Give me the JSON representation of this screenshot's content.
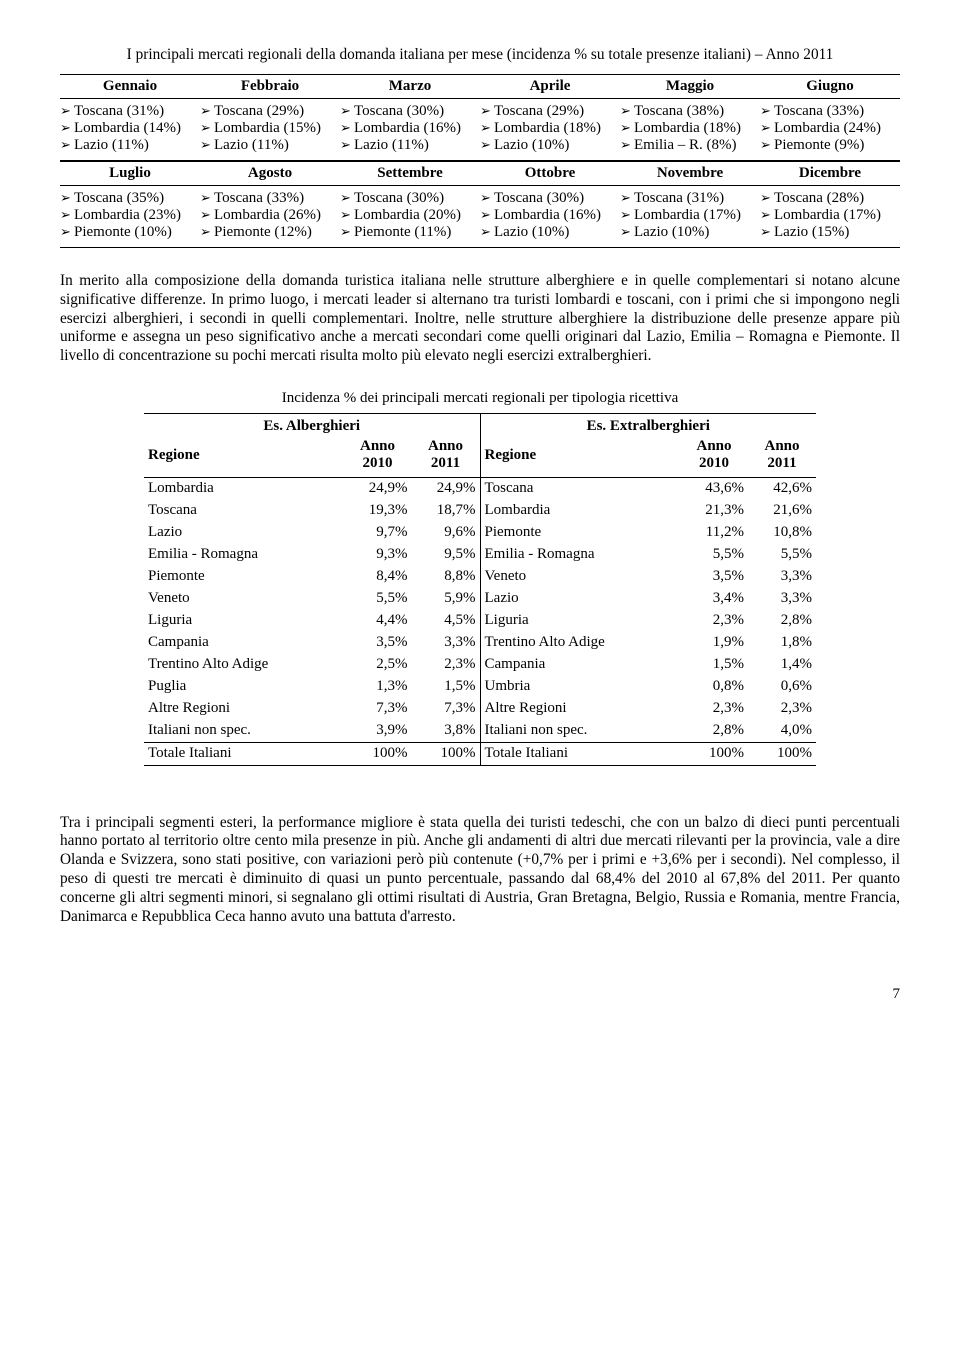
{
  "title_text": "I principali mercati regionali della domanda italiana per mese (incidenza % su totale presenze italiani) – Anno 2011",
  "months_a": [
    "Gennaio",
    "Febbraio",
    "Marzo",
    "Aprile",
    "Maggio",
    "Giugno"
  ],
  "months_b": [
    "Luglio",
    "Agosto",
    "Settembre",
    "Ottobre",
    "Novembre",
    "Dicembre"
  ],
  "data_a": [
    [
      "Toscana (31%)",
      "Lombardia (14%)",
      "Lazio (11%)"
    ],
    [
      "Toscana (29%)",
      "Lombardia (15%)",
      "Lazio (11%)"
    ],
    [
      "Toscana (30%)",
      "Lombardia (16%)",
      "Lazio (11%)"
    ],
    [
      "Toscana (29%)",
      "Lombardia (18%)",
      "Lazio (10%)"
    ],
    [
      "Toscana (38%)",
      "Lombardia (18%)",
      "Emilia – R. (8%)"
    ],
    [
      "Toscana (33%)",
      "Lombardia (24%)",
      "Piemonte (9%)"
    ]
  ],
  "data_b": [
    [
      "Toscana (35%)",
      "Lombardia (23%)",
      "Piemonte (10%)"
    ],
    [
      "Toscana (33%)",
      "Lombardia (26%)",
      "Piemonte (12%)"
    ],
    [
      "Toscana (30%)",
      "Lombardia (20%)",
      "Piemonte (11%)"
    ],
    [
      "Toscana (30%)",
      "Lombardia (16%)",
      "Lazio (10%)"
    ],
    [
      "Toscana (31%)",
      "Lombardia (17%)",
      "Lazio (10%)"
    ],
    [
      "Toscana (28%)",
      "Lombardia (17%)",
      "Lazio (15%)"
    ]
  ],
  "para1": "In merito alla composizione della domanda turistica italiana nelle strutture alberghiere e in quelle complementari si notano alcune significative differenze. In primo luogo, i mercati leader si alternano tra turisti lombardi e toscani, con i primi che si impongono negli esercizi alberghieri, i secondi in quelli complementari. Inoltre, nelle strutture alberghiere la distribuzione delle presenze appare più uniforme e assegna un peso significativo anche a mercati secondari come quelli originari dal Lazio, Emilia – Romagna e Piemonte. Il livello di concentrazione su pochi mercati risulta molto più elevato negli esercizi extralberghieri.",
  "incidence_title": "Incidenza % dei principali mercati regionali per tipologia ricettiva",
  "side_left_title": "Es. Alberghieri",
  "side_right_title": "Es. Extralberghieri",
  "col_reg": "Regione",
  "col_a": "Anno 2010",
  "col_b": "Anno 2011",
  "alb_rows": [
    [
      "Lombardia",
      "24,9%",
      "24,9%"
    ],
    [
      "Toscana",
      "19,3%",
      "18,7%"
    ],
    [
      "Lazio",
      "9,7%",
      "9,6%"
    ],
    [
      "Emilia - Romagna",
      "9,3%",
      "9,5%"
    ],
    [
      "Piemonte",
      "8,4%",
      "8,8%"
    ],
    [
      "Veneto",
      "5,5%",
      "5,9%"
    ],
    [
      "Liguria",
      "4,4%",
      "4,5%"
    ],
    [
      "Campania",
      "3,5%",
      "3,3%"
    ],
    [
      "Trentino Alto Adige",
      "2,5%",
      "2,3%"
    ],
    [
      "Puglia",
      "1,3%",
      "1,5%"
    ],
    [
      "Altre Regioni",
      "7,3%",
      "7,3%"
    ],
    [
      "Italiani non spec.",
      "3,9%",
      "3,8%"
    ]
  ],
  "alb_total": [
    "Totale Italiani",
    "100%",
    "100%"
  ],
  "ext_rows": [
    [
      "Toscana",
      "43,6%",
      "42,6%"
    ],
    [
      "Lombardia",
      "21,3%",
      "21,6%"
    ],
    [
      "Piemonte",
      "11,2%",
      "10,8%"
    ],
    [
      "Emilia - Romagna",
      "5,5%",
      "5,5%"
    ],
    [
      "Veneto",
      "3,5%",
      "3,3%"
    ],
    [
      "Lazio",
      "3,4%",
      "3,3%"
    ],
    [
      "Liguria",
      "2,3%",
      "2,8%"
    ],
    [
      "Trentino Alto Adige",
      "1,9%",
      "1,8%"
    ],
    [
      "Campania",
      "1,5%",
      "1,4%"
    ],
    [
      "Umbria",
      "0,8%",
      "0,6%"
    ],
    [
      "Altre Regioni",
      "2,3%",
      "2,3%"
    ],
    [
      "Italiani non spec.",
      "2,8%",
      "4,0%"
    ]
  ],
  "ext_total": [
    "Totale Italiani",
    "100%",
    "100%"
  ],
  "para2": "Tra i principali segmenti esteri, la performance migliore è stata quella dei turisti tedeschi, che con un balzo di dieci punti percentuali hanno portato al territorio oltre cento mila presenze in più. Anche gli andamenti di altri due mercati rilevanti per la provincia, vale a dire Olanda e Svizzera, sono stati positive, con variazioni però più contenute (+0,7% per i primi e +3,6% per i secondi). Nel complesso, il peso di questi tre mercati è diminuito di quasi un punto percentuale, passando dal 68,4% del 2010 al 67,8% del 2011. Per quanto concerne gli altri segmenti minori, si segnalano gli ottimi risultati di Austria, Gran Bretagna, Belgio, Russia e Romania, mentre Francia, Danimarca e Repubblica Ceca hanno avuto una battuta d'arresto.",
  "page_number": "7"
}
